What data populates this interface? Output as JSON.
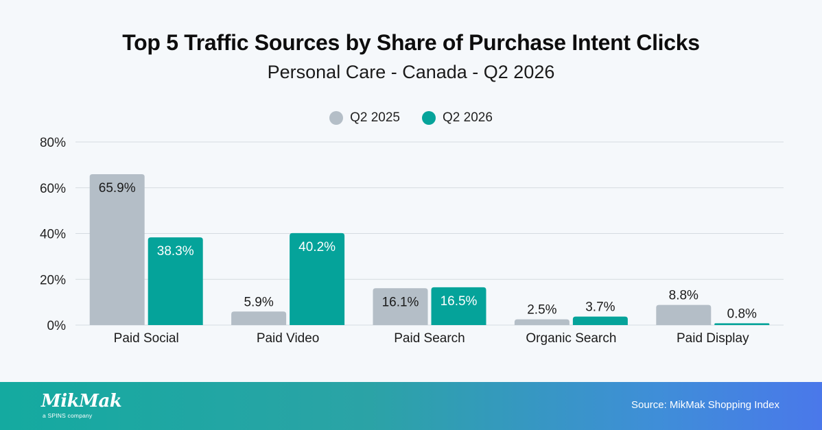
{
  "title": "Top 5 Traffic Sources by Share of Purchase Intent Clicks",
  "subtitle": "Personal Care - Canada - Q2 2026",
  "legend": [
    {
      "label": "Q2 2025",
      "color": "#b4bec7"
    },
    {
      "label": "Q2 2026",
      "color": "#05a39a"
    }
  ],
  "chart_data": {
    "type": "bar",
    "title": "Top 5 Traffic Sources by Share of Purchase Intent Clicks",
    "subtitle": "Personal Care - Canada - Q2 2026",
    "categories": [
      "Paid Social",
      "Paid Video",
      "Paid Search",
      "Organic Search",
      "Paid Display"
    ],
    "series": [
      {
        "name": "Q2 2025",
        "color": "#b4bec7",
        "values": [
          65.9,
          5.9,
          16.1,
          2.5,
          8.8
        ],
        "labels": [
          "65.9%",
          "5.9%",
          "16.1%",
          "2.5%",
          "8.8%"
        ]
      },
      {
        "name": "Q2 2026",
        "color": "#05a39a",
        "values": [
          38.3,
          40.2,
          16.5,
          3.7,
          0.8
        ],
        "labels": [
          "38.3%",
          "40.2%",
          "16.5%",
          "3.7%",
          "0.8%"
        ]
      }
    ],
    "ylim": [
      0,
      80
    ],
    "yticks": [
      "0%",
      "20%",
      "40%",
      "60%",
      "80%"
    ],
    "ytick_values": [
      0,
      20,
      40,
      60,
      80
    ],
    "grid": true,
    "legend_position": "top-center",
    "xlabel": "",
    "ylabel": ""
  },
  "footer": {
    "logo_text": "MikMak",
    "logo_tagline": "a SPINS company",
    "source": "Source: MikMak Shopping Index",
    "gradient_start": "#14aaa0",
    "gradient_end": "#4a78ea"
  }
}
